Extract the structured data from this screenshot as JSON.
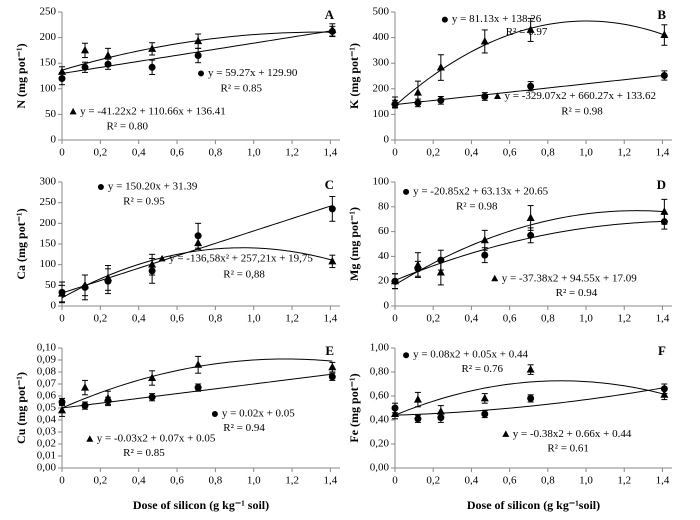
{
  "chart_data": [
    {
      "type": "scatter",
      "title": "A",
      "ylabel": "N (mg pot⁻¹)",
      "x": [
        0,
        0.12,
        0.24,
        0.47,
        0.71,
        1.41
      ],
      "xlim": [
        0,
        1.45
      ],
      "xticks": [
        0,
        {
          "value": 0.2,
          "label": "0,2"
        },
        {
          "value": 0.4,
          "label": "0,4"
        },
        {
          "value": 0.6,
          "label": "0,6"
        },
        {
          "value": 0.8,
          "label": "0,8"
        },
        {
          "value": 1,
          "label": "1,0"
        },
        {
          "value": 1.2,
          "label": "1,2"
        },
        {
          "value": 1.4,
          "label": "1,4"
        }
      ],
      "ylim": [
        0,
        250
      ],
      "yticks": [
        0,
        50,
        100,
        150,
        200,
        250
      ],
      "series": [
        {
          "marker": "circle",
          "color": "#000000",
          "values": [
            120,
            142,
            148,
            142,
            165,
            212
          ],
          "errors": [
            12,
            10,
            10,
            14,
            14,
            10
          ],
          "fit": [
            129.9,
            59.27,
            0
          ],
          "equation": "y = 59.27x + 129.90",
          "r2": "R² = 0.85"
        },
        {
          "marker": "triangle",
          "color": "#000000",
          "values": [
            133,
            175,
            165,
            178,
            193,
            215
          ],
          "errors": [
            10,
            14,
            14,
            12,
            14,
            12
          ],
          "fit": [
            136.41,
            110.66,
            -41.22
          ],
          "equation": "y = -41.22x2 + 110.66x + 136.41",
          "r2": "R² = 0.80"
        }
      ]
    },
    {
      "type": "scatter",
      "title": "B",
      "ylabel": "K (mg pot⁻¹)",
      "x": [
        0,
        0.12,
        0.24,
        0.47,
        0.71,
        1.41
      ],
      "xlim": [
        0,
        1.45
      ],
      "xticks": [
        0,
        {
          "value": 0.2,
          "label": "0,2"
        },
        {
          "value": 0.4,
          "label": "0,4"
        },
        {
          "value": 0.6,
          "label": "0,6"
        },
        {
          "value": 0.8,
          "label": "0,8"
        },
        {
          "value": 1,
          "label": "1,0"
        },
        {
          "value": 1.2,
          "label": "1,2"
        },
        {
          "value": 1.4,
          "label": "1,4"
        }
      ],
      "ylim": [
        0,
        500
      ],
      "yticks": [
        0,
        100,
        200,
        300,
        400,
        500
      ],
      "series": [
        {
          "marker": "circle",
          "color": "#000000",
          "values": [
            140,
            145,
            155,
            170,
            210,
            252
          ],
          "errors": [
            15,
            15,
            15,
            15,
            18,
            18
          ],
          "fit": [
            138.26,
            81.13,
            0
          ],
          "equation": "y = 81.13x + 138.26",
          "r2": "R² = 0.97"
        },
        {
          "marker": "triangle",
          "color": "#000000",
          "values": [
            148,
            185,
            283,
            385,
            430,
            410
          ],
          "errors": [
            20,
            45,
            50,
            45,
            45,
            40
          ],
          "fit": [
            133.62,
            660.27,
            -329.07
          ],
          "equation": "y = -329.07x2 + 660.27x + 133.62",
          "r2": "R² = 0.98"
        }
      ]
    },
    {
      "type": "scatter",
      "title": "C",
      "ylabel": "Ca (mg pot⁻¹)",
      "x": [
        0,
        0.12,
        0.24,
        0.47,
        0.71,
        1.41
      ],
      "xlim": [
        0,
        1.45
      ],
      "xticks": [
        0,
        {
          "value": 0.2,
          "label": "0,2"
        },
        {
          "value": 0.4,
          "label": "0,4"
        },
        {
          "value": 0.6,
          "label": "0,6"
        },
        {
          "value": 0.8,
          "label": "0,8"
        },
        {
          "value": 1,
          "label": "1,0"
        },
        {
          "value": 1.2,
          "label": "1,2"
        },
        {
          "value": 1.4,
          "label": "1,4"
        }
      ],
      "ylim": [
        0,
        300
      ],
      "yticks": [
        0,
        50,
        100,
        150,
        200,
        250,
        300
      ],
      "series": [
        {
          "marker": "circle",
          "color": "#000000",
          "values": [
            33,
            45,
            60,
            85,
            170,
            235
          ],
          "errors": [
            25,
            30,
            30,
            30,
            30,
            30
          ],
          "fit": [
            31.39,
            150.2,
            0
          ],
          "equation": "y = 150.20x + 31.39",
          "r2": "R² = 0.95"
        },
        {
          "marker": "triangle",
          "color": "#000000",
          "values": [
            30,
            50,
            68,
            100,
            152,
            108
          ],
          "errors": [
            20,
            25,
            30,
            25,
            15,
            15
          ],
          "fit": [
            19.75,
            257.21,
            -136.58
          ],
          "equation": "y = -136,58x² + 257,21x + 19,75",
          "r2": "R² = 0,88"
        }
      ]
    },
    {
      "type": "scatter",
      "title": "D",
      "ylabel": "Mg (mg pot⁻¹)",
      "x": [
        0,
        0.12,
        0.24,
        0.47,
        0.71,
        1.41
      ],
      "xlim": [
        0,
        1.45
      ],
      "xticks": [
        0,
        {
          "value": 0.2,
          "label": "0,2"
        },
        {
          "value": 0.4,
          "label": "0,4"
        },
        {
          "value": 0.6,
          "label": "0,6"
        },
        {
          "value": 0.8,
          "label": "0,8"
        },
        {
          "value": 1,
          "label": "1,0"
        },
        {
          "value": 1.2,
          "label": "1,2"
        },
        {
          "value": 1.4,
          "label": "1,4"
        }
      ],
      "ylim": [
        0,
        100
      ],
      "yticks": [
        0,
        20,
        40,
        60,
        80,
        100
      ],
      "series": [
        {
          "marker": "circle",
          "color": "#000000",
          "values": [
            20,
            30,
            37,
            41,
            57,
            68
          ],
          "errors": [
            6,
            6,
            8,
            6,
            6,
            6
          ],
          "fit": [
            20.65,
            63.13,
            -20.85
          ],
          "equation": "y = -20.85x2 + 63.13x + 20.65",
          "r2": "R² = 0.98"
        },
        {
          "marker": "triangle",
          "color": "#000000",
          "values": [
            20,
            33,
            27,
            53,
            71,
            76
          ],
          "errors": [
            6,
            10,
            10,
            8,
            10,
            10
          ],
          "fit": [
            17.09,
            94.55,
            -37.38
          ],
          "equation": "y = -37.38x2 + 94.55x + 17.09",
          "r2": "R² = 0.94"
        }
      ]
    },
    {
      "type": "scatter",
      "title": "E",
      "ylabel": "Cu (mg pot⁻¹)",
      "xlabel": "Dose of silicon (g kg⁻¹ soil)",
      "x": [
        0,
        0.12,
        0.24,
        0.47,
        0.71,
        1.41
      ],
      "xlim": [
        0,
        1.45
      ],
      "xticks": [
        0,
        {
          "value": 0.2,
          "label": "0,2"
        },
        {
          "value": 0.4,
          "label": "0,4"
        },
        {
          "value": 0.6,
          "label": "0,6"
        },
        {
          "value": 0.8,
          "label": "0,8"
        },
        {
          "value": 1,
          "label": "1,0"
        },
        {
          "value": 1.2,
          "label": "1,2"
        },
        {
          "value": 1.4,
          "label": "1,4"
        }
      ],
      "ylim": [
        0,
        0.1
      ],
      "yticks": [
        {
          "value": 0,
          "label": "0,00"
        },
        {
          "value": 0.01,
          "label": "0,01"
        },
        {
          "value": 0.02,
          "label": "0,02"
        },
        {
          "value": 0.03,
          "label": "0,03"
        },
        {
          "value": 0.04,
          "label": "0,04"
        },
        {
          "value": 0.05,
          "label": "0,05"
        },
        {
          "value": 0.06,
          "label": "0,06"
        },
        {
          "value": 0.07,
          "label": "0,07"
        },
        {
          "value": 0.08,
          "label": "0,08"
        },
        {
          "value": 0.09,
          "label": "0,09"
        },
        {
          "value": 0.1,
          "label": "0,10"
        }
      ],
      "series": [
        {
          "marker": "circle",
          "color": "#000000",
          "values": [
            0.055,
            0.052,
            0.056,
            0.059,
            0.067,
            0.076
          ],
          "errors": [
            0.003,
            0.003,
            0.003,
            0.003,
            0.003,
            0.003
          ],
          "fit": [
            0.05,
            0.02,
            0
          ],
          "equation": "y = 0.02x + 0.05",
          "r2": "R² = 0.94"
        },
        {
          "marker": "triangle",
          "color": "#000000",
          "values": [
            0.048,
            0.067,
            0.058,
            0.075,
            0.086,
            0.084
          ],
          "errors": [
            0.005,
            0.006,
            0.006,
            0.006,
            0.007,
            0.004
          ],
          "fit": [
            0.05,
            0.07,
            -0.03
          ],
          "equation": "y = -0.03x2 + 0.07x + 0.05",
          "r2": "R² = 0.85"
        }
      ]
    },
    {
      "type": "scatter",
      "title": "F",
      "ylabel": "Fe (mg pot⁻¹)",
      "xlabel": "Dose of silicon (g kg⁻¹soil)",
      "x": [
        0,
        0.12,
        0.24,
        0.47,
        0.71,
        1.41
      ],
      "xlim": [
        0,
        1.45
      ],
      "xticks": [
        0,
        {
          "value": 0.2,
          "label": "0,2"
        },
        {
          "value": 0.4,
          "label": "0,4"
        },
        {
          "value": 0.6,
          "label": "0,6"
        },
        {
          "value": 0.8,
          "label": "0,8"
        },
        {
          "value": 1,
          "label": "1,0"
        },
        {
          "value": 1.2,
          "label": "1,2"
        },
        {
          "value": 1.4,
          "label": "1,4"
        }
      ],
      "ylim": [
        0,
        1
      ],
      "yticks": [
        {
          "value": 0,
          "label": "0,00"
        },
        {
          "value": 0.2,
          "label": "0,20"
        },
        {
          "value": 0.4,
          "label": "0,40"
        },
        {
          "value": 0.6,
          "label": "0,60"
        },
        {
          "value": 0.8,
          "label": "0,80"
        },
        {
          "value": 1,
          "label": "1,00"
        }
      ],
      "series": [
        {
          "marker": "circle",
          "color": "#000000",
          "values": [
            0.5,
            0.41,
            0.42,
            0.45,
            0.58,
            0.66
          ],
          "errors": [
            0.04,
            0.03,
            0.04,
            0.03,
            0.03,
            0.04
          ],
          "fit": [
            0.44,
            0.05,
            0.08
          ],
          "equation": "y = 0.08x2 + 0.05x + 0.44",
          "r2": "R² = 0.76"
        },
        {
          "marker": "triangle",
          "color": "#000000",
          "values": [
            0.45,
            0.57,
            0.47,
            0.58,
            0.82,
            0.61
          ],
          "errors": [
            0.04,
            0.06,
            0.05,
            0.04,
            0.04,
            0.04
          ],
          "fit": [
            0.44,
            0.66,
            -0.38
          ],
          "equation": "y = -0.38x2 + 0.66x + 0.44",
          "r2": "R² = 0.61"
        }
      ]
    }
  ]
}
